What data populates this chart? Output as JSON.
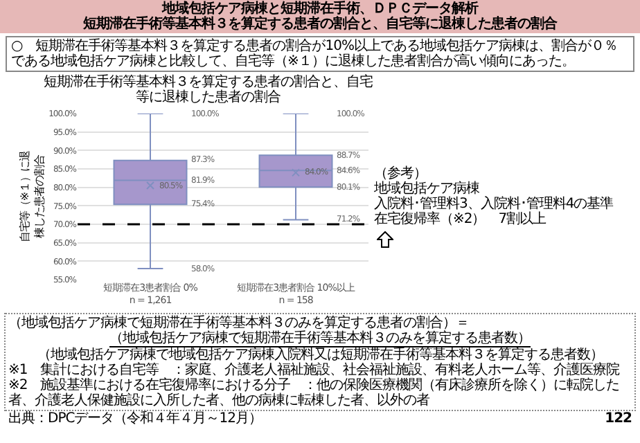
{
  "chart_data": {
    "type": "box",
    "title": "地域包括ケア病棟と短期滞在手術、ＤＰＣデータ解析",
    "subtitle": "短期滞在手術等基本料３を算定する患者の割合と、自宅等に退棟した患者の割合",
    "ylabel": "自宅等（※１）に退棟した患者の割合",
    "categories": [
      "短期滞在3患者割合 0%\nn = 1,261",
      "短期滞在3患者割合 10%以上\nn = 158"
    ],
    "color": "#a697cc",
    "marker": "cross",
    "grid": "y",
    "boxes": [
      {
        "low": 58.0,
        "q1": 75.4,
        "median": 81.9,
        "q3": 87.3,
        "high": 100.0,
        "mean": 80.5
      },
      {
        "low": 71.2,
        "q1": 80.1,
        "median": 84.6,
        "q3": 88.7,
        "high": 100.0,
        "mean": 84.0
      }
    ],
    "ylim": [
      55,
      100
    ],
    "yticks": [
      {
        "value": 55,
        "label": "55.0%"
      },
      {
        "value": 60,
        "label": "60.0%"
      },
      {
        "value": 65,
        "label": "65.0%"
      },
      {
        "value": 70,
        "label": "70.0%"
      },
      {
        "value": 75,
        "label": "75.0%"
      },
      {
        "value": 80,
        "label": "80.0%"
      },
      {
        "value": 85,
        "label": "85.0%"
      },
      {
        "value": 90,
        "label": "90.0%"
      },
      {
        "value": 95,
        "label": "95.0%"
      },
      {
        "value": 100,
        "label": "100.0%"
      }
    ],
    "ref_lines": [
      {
        "axis": "y",
        "value": 70,
        "color": "#000000",
        "line_style": "dashed"
      }
    ],
    "annotations": [
      "○　短期滞在手術等基本料３を算定する患者の割合が10%以上である地域包括ケア病棟は、割合が０％である地域包括ケア病棟と比較して、自宅等（※１）に退棟した患者割合が高い傾向にあった。",
      "短期滞在手術等基本料３を算定する患者の割合と、自宅等に退棟した患者の割合",
      "（参考）",
      "地域包括ケア病棟",
      "入院料･管理料3、入院料･管理料4の基準",
      "在宅復帰率（※2）　7割以上",
      "（地域包括ケア病棟で短期滞在手術等基本料３のみを算定する患者の割合）＝",
      "（地域包括ケア病棟で短期滞在手術等基本料３のみを算定する患者数）",
      "（地域包括ケア病棟で地域包括ケア病棟入院料又は短期滞在手術等基本料３を算定する患者数）",
      "※1　集計における自宅等　：家庭、介護老人福祉施設、社会福祉施設、有料老人ホーム等、介護医療院",
      "※2　施設基準における在宅復帰率における分子　：他の保険医療機関（有床診療所を除く）に転院した者、介護老人保健施設に入所した者、他の病棟に転棟した者、以外の者",
      "出典：DPCデータ（令和４年４月～12月）",
      "122",
      "100.0%",
      "87.3%",
      "81.9%",
      "80.5%",
      "75.4%",
      "58.0%",
      "100.0%",
      "88.7%",
      "84.6%",
      "84.0%",
      "80.1%",
      "71.2%"
    ]
  }
}
